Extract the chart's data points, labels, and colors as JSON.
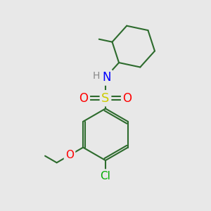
{
  "background_color": "#e8e8e8",
  "bond_color": "#2d6b2d",
  "atom_colors": {
    "N": "#0000ff",
    "S": "#cccc00",
    "O": "#ff0000",
    "Cl": "#00aa00",
    "H": "#888888"
  },
  "figsize": [
    3.0,
    3.0
  ],
  "dpi": 100
}
